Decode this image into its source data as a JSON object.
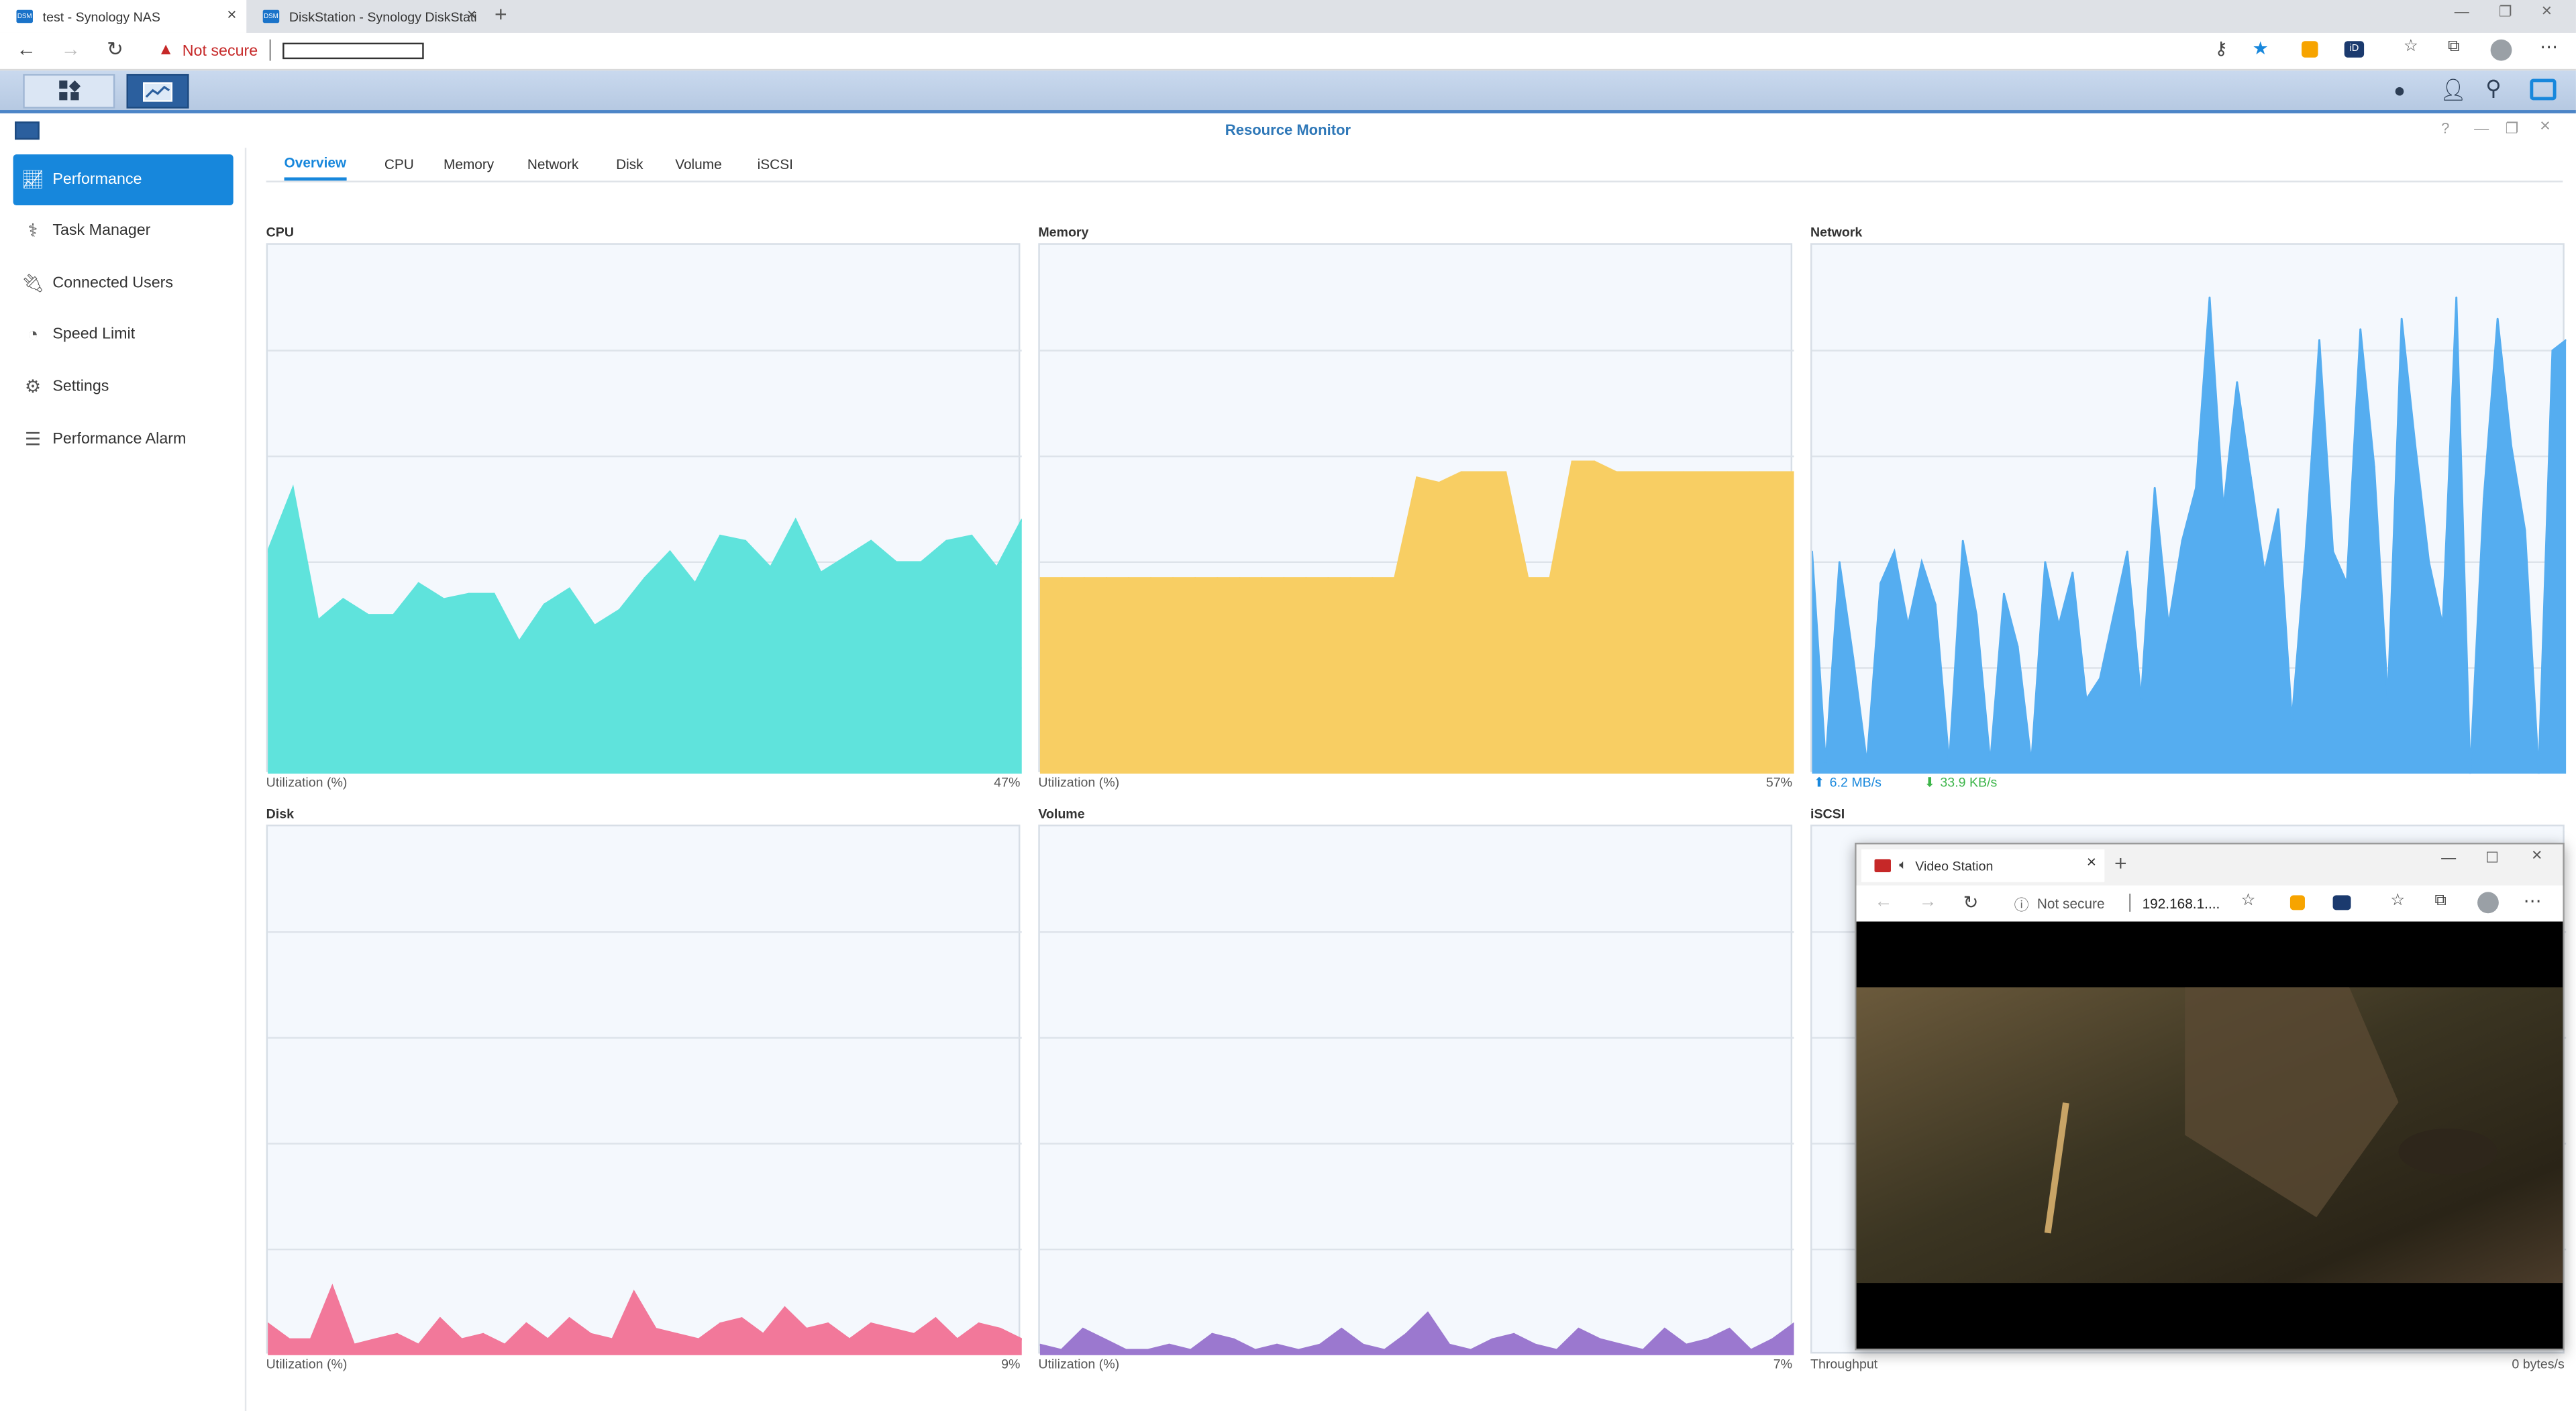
{
  "browser": {
    "tabs": [
      {
        "title": "test - Synology NAS",
        "favicon": "DSM"
      },
      {
        "title": "DiskStation - Synology DiskStati",
        "favicon": "DSM"
      }
    ],
    "security_label": "Not secure",
    "address_value": ""
  },
  "window": {
    "title": "Resource Monitor"
  },
  "sidebar": {
    "items": [
      {
        "label": "Performance",
        "icon": "performance-icon",
        "selected": true
      },
      {
        "label": "Task Manager",
        "icon": "task-manager-icon"
      },
      {
        "label": "Connected Users",
        "icon": "plug-icon"
      },
      {
        "label": "Speed Limit",
        "icon": "speed-limit-icon"
      },
      {
        "label": "Settings",
        "icon": "gear-icon"
      },
      {
        "label": "Performance Alarm",
        "icon": "alarm-list-icon"
      }
    ]
  },
  "tabs": [
    {
      "label": "Overview",
      "selected": true
    },
    {
      "label": "CPU"
    },
    {
      "label": "Memory"
    },
    {
      "label": "Network"
    },
    {
      "label": "Disk"
    },
    {
      "label": "Volume"
    },
    {
      "label": "iSCSI"
    }
  ],
  "panels": {
    "cpu": {
      "title": "CPU",
      "footer_label": "Utilization (%)",
      "footer_value": "47%",
      "color": "#5fe3dc"
    },
    "memory": {
      "title": "Memory",
      "footer_label": "Utilization (%)",
      "footer_value": "57%",
      "color": "#f8ce63"
    },
    "network": {
      "title": "Network",
      "upload": "6.2 MB/s",
      "download": "33.9 KB/s",
      "color": "#55adf0",
      "up_color": "#1787dc",
      "down_color": "#3db54a"
    },
    "disk": {
      "title": "Disk",
      "footer_label": "Utilization (%)",
      "footer_value": "9%",
      "color": "#f2789a"
    },
    "volume": {
      "title": "Volume",
      "footer_label": "Utilization (%)",
      "footer_value": "7%",
      "color": "#9b78cf"
    },
    "iscsi": {
      "title": "iSCSI",
      "footer_label": "Throughput",
      "footer_value": "0 bytes/s"
    }
  },
  "video_window": {
    "tab_title": "Video Station",
    "security_label": "Not secure",
    "address": "192.168.1...."
  },
  "chart_data": [
    {
      "type": "area",
      "title": "CPU",
      "ylabel": "Utilization (%)",
      "ylim": [
        0,
        100
      ],
      "values": [
        42,
        54,
        29,
        33,
        30,
        30,
        36,
        33,
        34,
        34,
        25,
        32,
        35,
        28,
        31,
        37,
        42,
        36,
        45,
        44,
        39,
        48,
        38,
        41,
        44,
        40,
        40,
        44,
        45,
        39,
        48
      ]
    },
    {
      "type": "area",
      "title": "Memory",
      "ylabel": "Utilization (%)",
      "ylim": [
        0,
        100
      ],
      "values": [
        37,
        37,
        37,
        37,
        37,
        37,
        37,
        37,
        37,
        37,
        37,
        37,
        37,
        37,
        37,
        37,
        37,
        56,
        55,
        57,
        57,
        57,
        37,
        37,
        59,
        59,
        57,
        57,
        57,
        57,
        57,
        57,
        57,
        57,
        57
      ]
    },
    {
      "type": "area",
      "title": "Network",
      "ylim": [
        0,
        100
      ],
      "values": [
        42,
        2,
        40,
        22,
        2,
        36,
        42,
        28,
        40,
        32,
        2,
        44,
        30,
        2,
        34,
        24,
        2,
        40,
        28,
        38,
        14,
        18,
        30,
        42,
        14,
        54,
        28,
        44,
        54,
        90,
        50,
        74,
        56,
        38,
        50,
        10,
        42,
        82,
        42,
        36,
        84,
        58,
        14,
        86,
        62,
        40,
        28,
        90,
        0,
        52,
        86,
        62,
        46,
        0,
        80,
        82
      ],
      "upload": "6.2 MB/s",
      "download": "33.9 KB/s"
    },
    {
      "type": "area",
      "title": "Disk",
      "ylabel": "Utilization (%)",
      "ylim": [
        0,
        100
      ],
      "values": [
        6,
        3,
        3,
        13,
        2,
        3,
        4,
        2,
        7,
        3,
        4,
        2,
        6,
        3,
        7,
        4,
        3,
        12,
        5,
        4,
        3,
        6,
        7,
        4,
        9,
        5,
        6,
        3,
        6,
        5,
        4,
        7,
        3,
        6,
        5,
        3
      ]
    },
    {
      "type": "area",
      "title": "Volume",
      "ylabel": "Utilization (%)",
      "ylim": [
        0,
        100
      ],
      "values": [
        2,
        1,
        5,
        3,
        1,
        1,
        2,
        1,
        4,
        3,
        1,
        2,
        1,
        2,
        5,
        2,
        1,
        4,
        8,
        2,
        1,
        3,
        4,
        2,
        1,
        5,
        3,
        2,
        1,
        5,
        2,
        3,
        5,
        1,
        3,
        6
      ]
    }
  ]
}
